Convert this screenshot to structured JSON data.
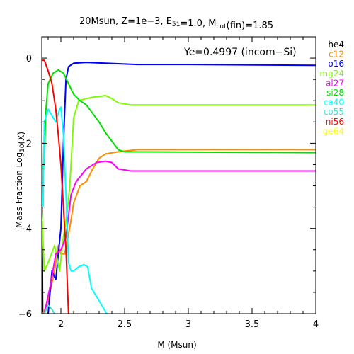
{
  "chart_data": {
    "type": "line",
    "title": {
      "parts": [
        {
          "text": "20Msun, Z=1e−3, E"
        },
        {
          "text": "51",
          "sub": true
        },
        {
          "text": "=1.0, M"
        },
        {
          "text": "cut",
          "sub": true
        },
        {
          "text": "(fin)=1.85"
        }
      ]
    },
    "xlabel": "M (Msun)",
    "ylabel": {
      "parts": [
        {
          "text": "Mass Fraction Log"
        },
        {
          "text": "10",
          "sub": true
        },
        {
          "text": "(X)"
        }
      ]
    },
    "annotation": "Ye=0.4997 (incom−Si)",
    "xlim": [
      1.85,
      4.0
    ],
    "ylim": [
      -6,
      0.5
    ],
    "x_ticks": [
      {
        "value": 2,
        "label": "2"
      },
      {
        "value": 2.5,
        "label": "2.5"
      },
      {
        "value": 3,
        "label": "3"
      },
      {
        "value": 3.5,
        "label": "3.5"
      },
      {
        "value": 4,
        "label": "4"
      }
    ],
    "y_ticks": [
      {
        "value": 0,
        "label": "0"
      },
      {
        "value": -2,
        "label": "−2"
      },
      {
        "value": -4,
        "label": "−4"
      },
      {
        "value": -6,
        "label": "−6"
      }
    ],
    "legend_placement": "right-outside",
    "series": [
      {
        "name": "he4",
        "color": "#000000",
        "points": [
          [
            1.85,
            -1.8
          ],
          [
            1.853,
            -3.8
          ],
          [
            1.857,
            -6.0
          ]
        ]
      },
      {
        "name": "c12",
        "color": "#ff8c00",
        "points": [
          [
            1.86,
            -6.0
          ],
          [
            1.9,
            -5.7
          ],
          [
            1.95,
            -5.0
          ],
          [
            1.98,
            -4.4
          ],
          [
            2.0,
            -4.6
          ],
          [
            2.03,
            -4.6
          ],
          [
            2.05,
            -4.3
          ],
          [
            2.08,
            -3.8
          ],
          [
            2.1,
            -3.4
          ],
          [
            2.15,
            -3.0
          ],
          [
            2.2,
            -2.9
          ],
          [
            2.25,
            -2.6
          ],
          [
            2.3,
            -2.35
          ],
          [
            2.35,
            -2.25
          ],
          [
            2.45,
            -2.2
          ],
          [
            2.6,
            -2.15
          ],
          [
            3.0,
            -2.15
          ],
          [
            4.0,
            -2.15
          ]
        ]
      },
      {
        "name": "o16",
        "color": "#0000ff",
        "points": [
          [
            1.9,
            -6.0
          ],
          [
            1.93,
            -5.0
          ],
          [
            1.96,
            -5.2
          ],
          [
            2.0,
            -4.0
          ],
          [
            2.02,
            -2.0
          ],
          [
            2.04,
            -0.5
          ],
          [
            2.06,
            -0.2
          ],
          [
            2.1,
            -0.12
          ],
          [
            2.2,
            -0.1
          ],
          [
            2.35,
            -0.12
          ],
          [
            2.6,
            -0.15
          ],
          [
            3.0,
            -0.15
          ],
          [
            4.0,
            -0.17
          ]
        ]
      },
      {
        "name": "mg24",
        "color": "#7cfc00",
        "points": [
          [
            1.85,
            -3.6
          ],
          [
            1.87,
            -5.0
          ],
          [
            1.9,
            -4.8
          ],
          [
            1.95,
            -4.4
          ],
          [
            1.99,
            -5.0
          ],
          [
            2.02,
            -4.2
          ],
          [
            2.05,
            -3.6
          ],
          [
            2.07,
            -3.0
          ],
          [
            2.1,
            -1.4
          ],
          [
            2.14,
            -1.0
          ],
          [
            2.2,
            -0.95
          ],
          [
            2.25,
            -0.92
          ],
          [
            2.3,
            -0.9
          ],
          [
            2.35,
            -0.88
          ],
          [
            2.4,
            -0.95
          ],
          [
            2.45,
            -1.05
          ],
          [
            2.55,
            -1.1
          ],
          [
            3.0,
            -1.1
          ],
          [
            4.0,
            -1.1
          ]
        ]
      },
      {
        "name": "al27",
        "color": "#ff00ff",
        "points": [
          [
            1.87,
            -6.0
          ],
          [
            1.92,
            -5.3
          ],
          [
            1.96,
            -4.6
          ],
          [
            2.0,
            -4.5
          ],
          [
            2.04,
            -4.2
          ],
          [
            2.08,
            -3.2
          ],
          [
            2.12,
            -2.9
          ],
          [
            2.2,
            -2.6
          ],
          [
            2.28,
            -2.45
          ],
          [
            2.35,
            -2.42
          ],
          [
            2.4,
            -2.45
          ],
          [
            2.45,
            -2.6
          ],
          [
            2.55,
            -2.65
          ],
          [
            4.0,
            -2.65
          ]
        ]
      },
      {
        "name": "si28",
        "color": "#00e000",
        "points": [
          [
            1.85,
            -2.6
          ],
          [
            1.87,
            -2.5
          ],
          [
            1.88,
            -1.3
          ],
          [
            1.9,
            -0.6
          ],
          [
            1.94,
            -0.35
          ],
          [
            1.98,
            -0.28
          ],
          [
            2.02,
            -0.35
          ],
          [
            2.06,
            -0.6
          ],
          [
            2.1,
            -0.85
          ],
          [
            2.15,
            -1.0
          ],
          [
            2.2,
            -1.1
          ],
          [
            2.25,
            -1.3
          ],
          [
            2.3,
            -1.5
          ],
          [
            2.35,
            -1.75
          ],
          [
            2.4,
            -1.95
          ],
          [
            2.45,
            -2.15
          ],
          [
            2.5,
            -2.2
          ],
          [
            4.0,
            -2.22
          ]
        ]
      },
      {
        "name": "ca40",
        "color": "#00ffff",
        "points": [
          [
            1.86,
            -3.5
          ],
          [
            1.87,
            -1.5
          ],
          [
            1.9,
            -1.2
          ],
          [
            1.93,
            -1.35
          ],
          [
            1.96,
            -1.5
          ],
          [
            1.98,
            -1.3
          ],
          [
            1.99,
            -1.2
          ],
          [
            2.0,
            -1.15
          ],
          [
            2.02,
            -1.8
          ],
          [
            2.04,
            -3.2
          ],
          [
            2.06,
            -4.8
          ],
          [
            2.08,
            -5.0
          ],
          [
            2.1,
            -5.0
          ],
          [
            2.14,
            -4.9
          ],
          [
            2.18,
            -4.85
          ],
          [
            2.21,
            -4.9
          ],
          [
            2.24,
            -5.4
          ],
          [
            2.28,
            -5.6
          ],
          [
            2.32,
            -5.8
          ],
          [
            2.36,
            -6.0
          ]
        ]
      },
      {
        "name": "co55",
        "color": "#40e0d0",
        "points": [
          [
            1.87,
            -6.0
          ],
          [
            1.9,
            -5.8
          ],
          [
            1.93,
            -5.9
          ],
          [
            1.95,
            -6.0
          ]
        ]
      },
      {
        "name": "ni56",
        "color": "#ff0000",
        "points": [
          [
            1.85,
            -0.05
          ],
          [
            1.87,
            -0.05
          ],
          [
            1.9,
            -0.3
          ],
          [
            1.93,
            -0.6
          ],
          [
            1.96,
            -1.2
          ],
          [
            1.98,
            -1.8
          ],
          [
            2.0,
            -2.5
          ],
          [
            2.02,
            -3.5
          ],
          [
            2.04,
            -4.5
          ],
          [
            2.06,
            -6.0
          ]
        ]
      },
      {
        "name": "ge64",
        "color": "#ffff00",
        "points": []
      }
    ]
  }
}
